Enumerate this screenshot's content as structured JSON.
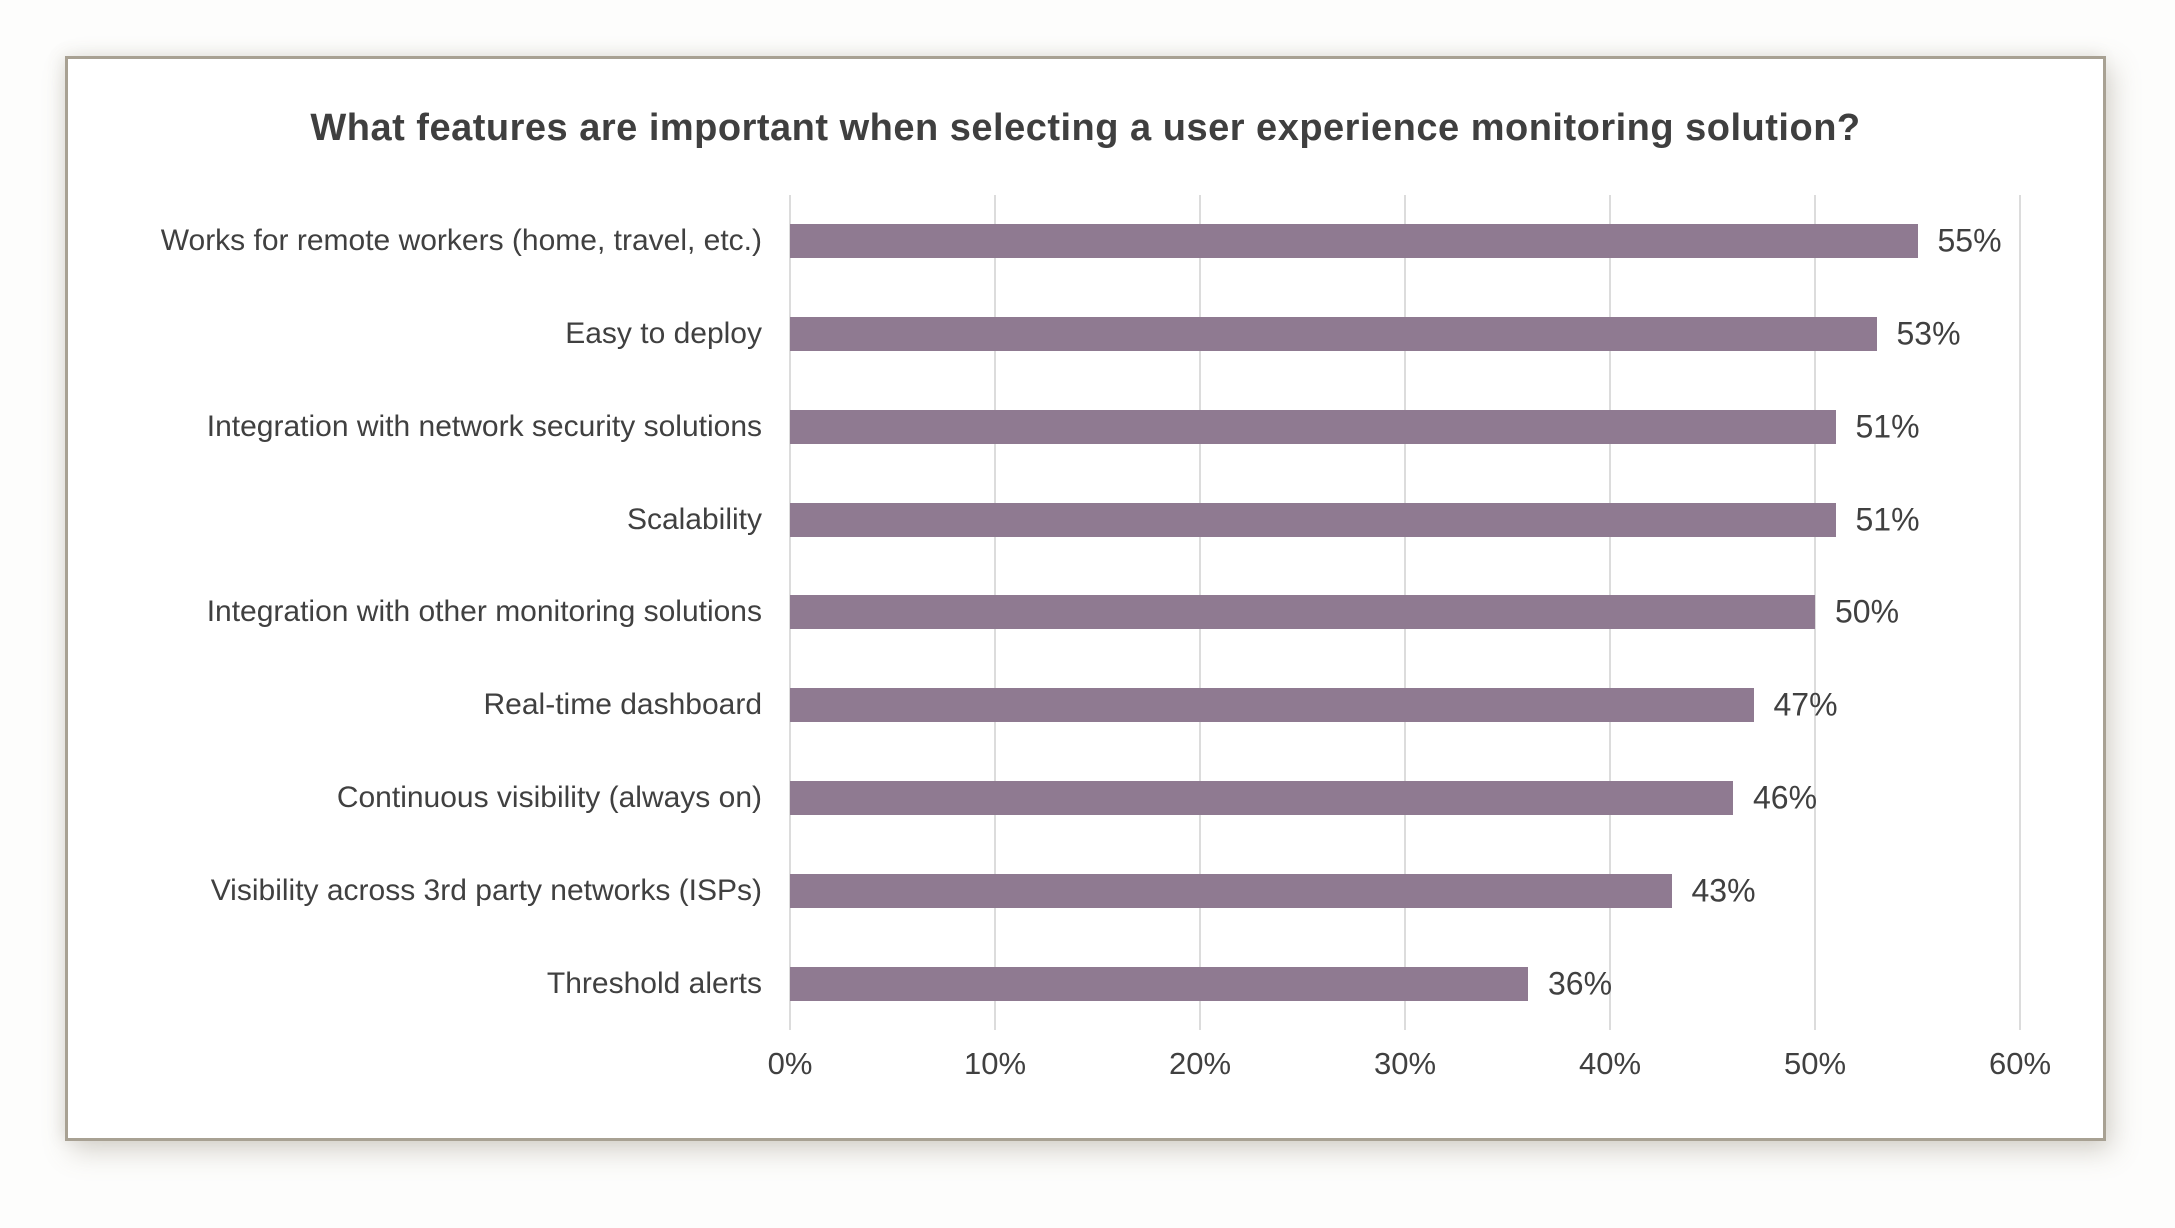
{
  "chart_data": {
    "type": "bar",
    "orientation": "horizontal",
    "title": "What features are important when selecting a user experience monitoring solution?",
    "categories": [
      "Works for remote workers (home, travel, etc.)",
      "Easy to deploy",
      "Integration with network security solutions",
      "Scalability",
      "Integration with other monitoring solutions",
      "Real-time dashboard",
      "Continuous visibility (always on)",
      "Visibility across 3rd party networks (ISPs)",
      "Threshold alerts"
    ],
    "values": [
      55,
      53,
      51,
      51,
      50,
      47,
      46,
      43,
      36
    ],
    "value_labels": [
      "55%",
      "53%",
      "51%",
      "51%",
      "50%",
      "47%",
      "46%",
      "43%",
      "36%"
    ],
    "xlabel": "",
    "ylabel": "",
    "xlim": [
      0,
      60
    ],
    "x_tick_values": [
      0,
      10,
      20,
      30,
      40,
      50,
      60
    ],
    "x_tick_labels": [
      "0%",
      "10%",
      "20%",
      "30%",
      "40%",
      "50%",
      "60%"
    ],
    "grid": "vertical-only",
    "legend": "none",
    "colors": {
      "bar": "#8f7a91",
      "gridline": "#dcdcdc",
      "title_text": "#3f3f3f",
      "label_text": "#404040",
      "frame_border": "#a8a193",
      "plot_background": "#ffffff"
    }
  }
}
